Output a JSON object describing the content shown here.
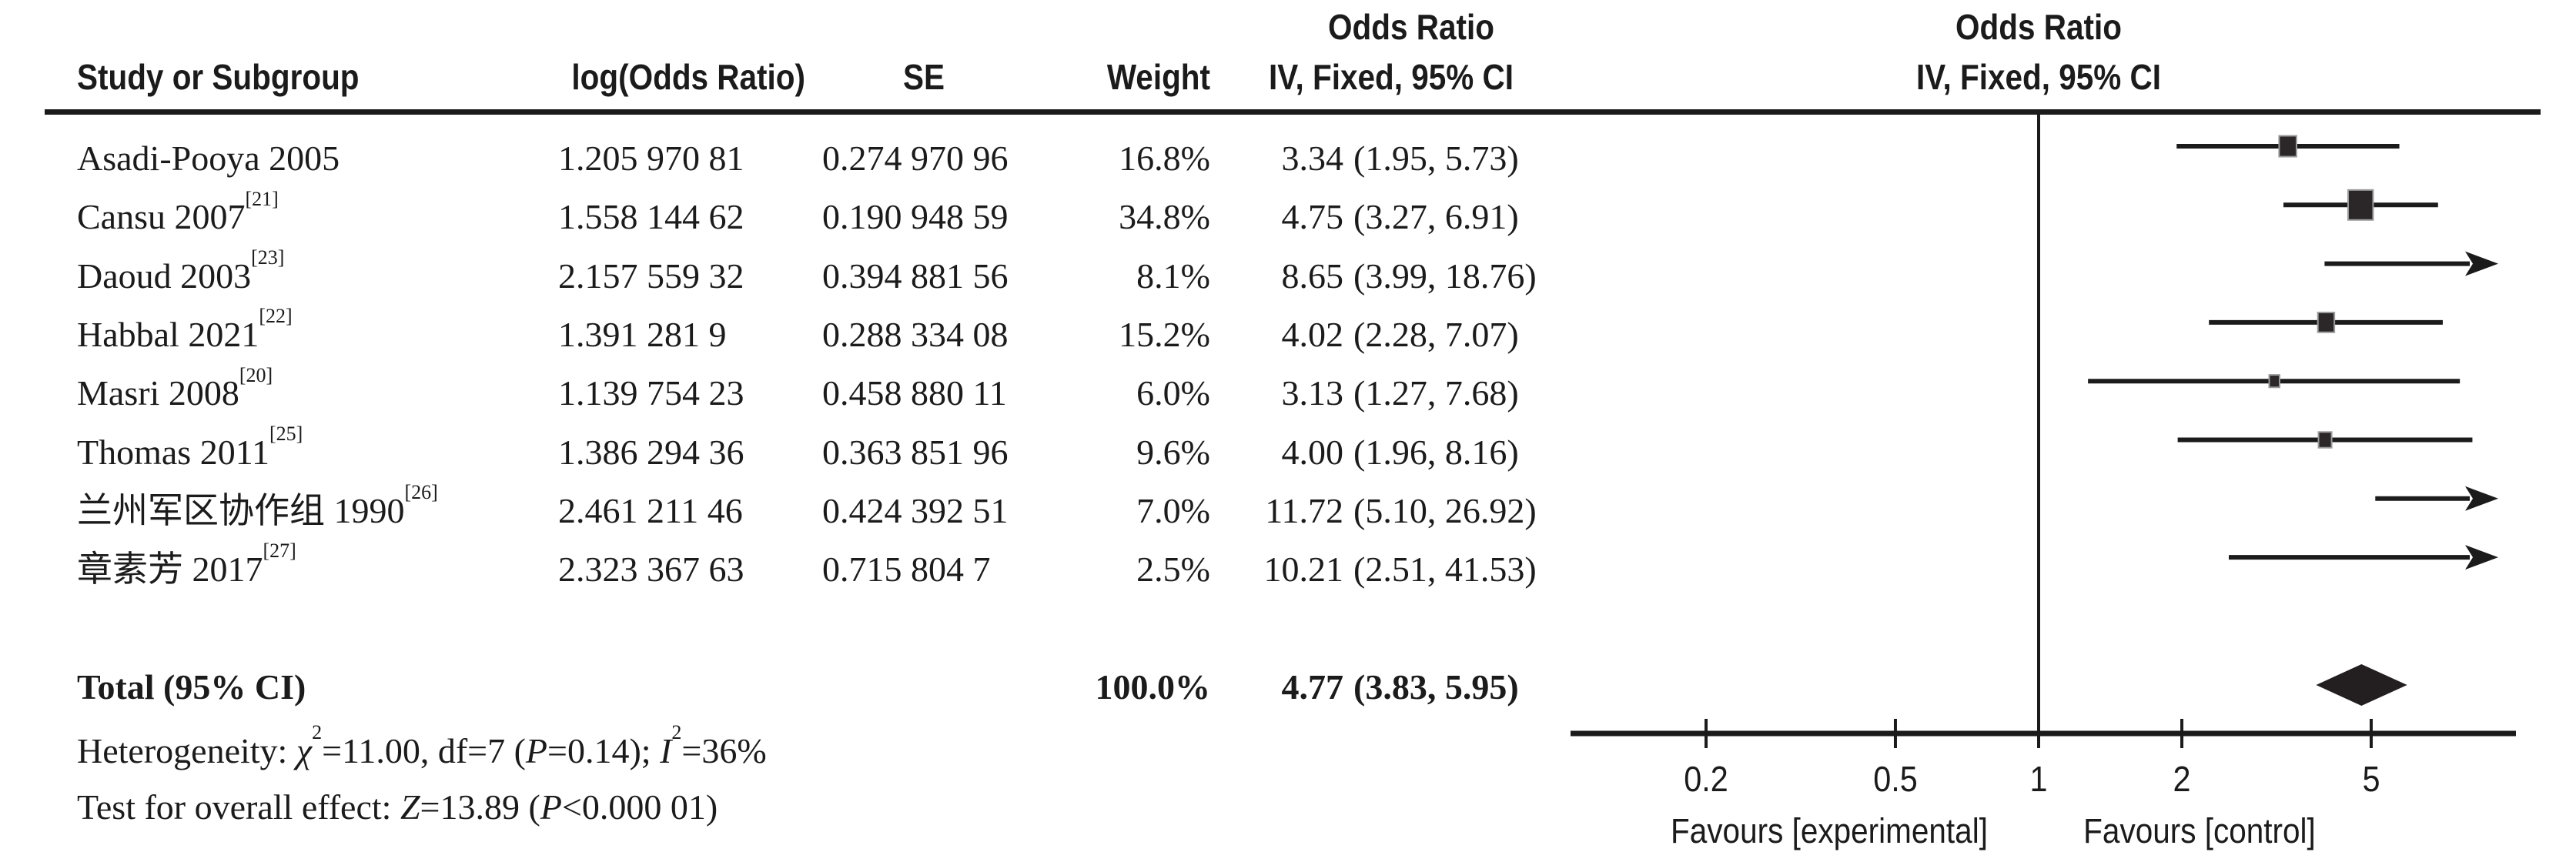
{
  "colors": {
    "ink": "#1b1b1b",
    "square": "#2b2728",
    "square_edge": "#9b9b9b",
    "diamond": "#231f20"
  },
  "header": {
    "or_label_table": "Odds Ratio",
    "or_label_plot": "Odds Ratio",
    "study": "Study or Subgroup",
    "log_or": "log(Odds Ratio)",
    "se": "SE",
    "weight": "Weight",
    "method_ci_table": "IV, Fixed, 95% CI",
    "method_ci_plot": "IV, Fixed, 95% CI"
  },
  "chart_data": {
    "type": "forest",
    "effect_measure": "Odds Ratio",
    "model": "IV, Fixed, 95% CI",
    "x_scale": "log10",
    "null_value": 1,
    "axis_ticks": [
      "0.2",
      "0.5",
      "1",
      "2",
      "5"
    ],
    "axis_tick_values": [
      0.2,
      0.5,
      1,
      2,
      5
    ],
    "axis_range": [
      0.1,
      10
    ],
    "favours_left": "Favours [experimental]",
    "favours_right": "Favours [control]",
    "studies": [
      {
        "name": "Asadi-Pooya 2005",
        "ref": "",
        "log_or": "1.205 970 81",
        "se": "0.274 970 96",
        "weight": "16.8%",
        "weight_pct": 16.8,
        "est": "3.34",
        "ci": "(1.95, 5.73)",
        "or": 3.34,
        "lo": 1.95,
        "hi": 5.73,
        "hi_clipped": false
      },
      {
        "name": "Cansu 2007",
        "ref": "[21]",
        "log_or": "1.558 144 62",
        "se": "0.190 948 59",
        "weight": "34.8%",
        "weight_pct": 34.8,
        "est": "4.75",
        "ci": "(3.27, 6.91)",
        "or": 4.75,
        "lo": 3.27,
        "hi": 6.91,
        "hi_clipped": false
      },
      {
        "name": "Daoud 2003",
        "ref": "[23]",
        "log_or": "2.157 559 32",
        "se": "0.394 881 56",
        "weight": "8.1%",
        "weight_pct": 8.1,
        "est": "8.65",
        "ci": "(3.99, 18.76)",
        "or": 8.65,
        "lo": 3.99,
        "hi": 18.76,
        "hi_clipped": true
      },
      {
        "name": "Habbal 2021",
        "ref": "[22]",
        "log_or": "1.391 281 9",
        "se": "0.288 334 08",
        "weight": "15.2%",
        "weight_pct": 15.2,
        "est": "4.02",
        "ci": "(2.28, 7.07)",
        "or": 4.02,
        "lo": 2.28,
        "hi": 7.07,
        "hi_clipped": false
      },
      {
        "name": "Masri 2008",
        "ref": "[20]",
        "log_or": "1.139 754 23",
        "se": "0.458 880 11",
        "weight": "6.0%",
        "weight_pct": 6.0,
        "est": "3.13",
        "ci": "(1.27, 7.68)",
        "or": 3.13,
        "lo": 1.27,
        "hi": 7.68,
        "hi_clipped": false
      },
      {
        "name": "Thomas 2011",
        "ref": "[25]",
        "log_or": "1.386 294 36",
        "se": "0.363 851 96",
        "weight": "9.6%",
        "weight_pct": 9.6,
        "est": "4.00",
        "ci": "(1.96, 8.16)",
        "or": 4.0,
        "lo": 1.96,
        "hi": 8.16,
        "hi_clipped": false
      },
      {
        "name": "兰州军区协作组 1990",
        "ref": "[26]",
        "log_or": "2.461 211 46",
        "se": "0.424 392 51",
        "weight": "7.0%",
        "weight_pct": 7.0,
        "est": "11.72",
        "ci": "(5.10, 26.92)",
        "or": 11.72,
        "lo": 5.1,
        "hi": 26.92,
        "hi_clipped": true
      },
      {
        "name": "章素芳 2017",
        "ref": "[27]",
        "log_or": "2.323 367 63",
        "se": "0.715 804 7",
        "weight": "2.5%",
        "weight_pct": 2.5,
        "est": "10.21",
        "ci": "(2.51, 41.53)",
        "or": 10.21,
        "lo": 2.51,
        "hi": 41.53,
        "hi_clipped": true
      }
    ],
    "total": {
      "label": "Total (95% CI)",
      "weight": "100.0%",
      "weight_pct": 100.0,
      "est": "4.77",
      "ci": "(3.83, 5.95)",
      "or": 4.77,
      "lo": 3.83,
      "hi": 5.95
    },
    "heterogeneity": {
      "label": "Heterogeneity: ",
      "chi_sym": "χ",
      "chi2": "11.00",
      "df": "7",
      "p_label": "P",
      "p": "0.14",
      "i_sym": "I",
      "i2": "36%"
    },
    "overall": {
      "label": "Test for overall effect: ",
      "z_label": "Z",
      "z": "13.89",
      "p_label": "P",
      "p": "<0.000 01"
    }
  }
}
